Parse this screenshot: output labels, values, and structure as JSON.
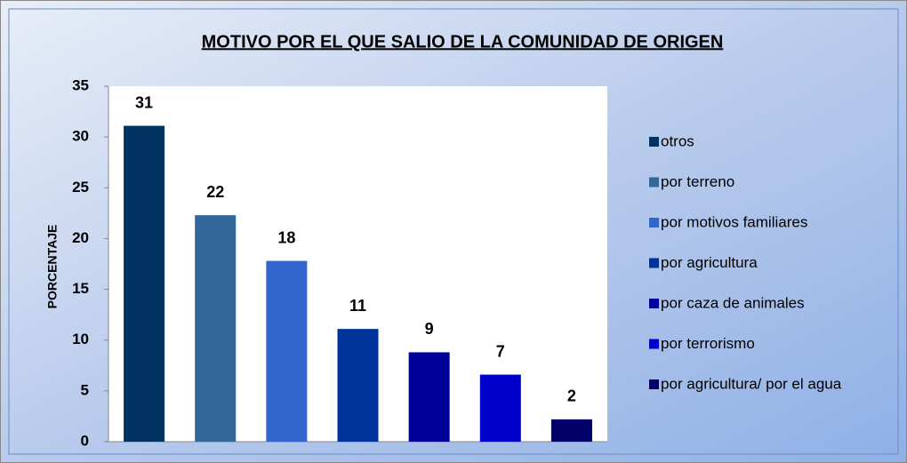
{
  "chart_data": {
    "type": "bar",
    "title": "MOTIVO POR EL QUE SALIO DE LA COMUNIDAD DE ORIGEN",
    "y_label": "PORCENTAJE",
    "categories": [
      "otros",
      "por terreno",
      "por motivos familiares",
      "por agricultura",
      "por caza de animales",
      "por terrorismo",
      "por agricultura/ por el agua"
    ],
    "values": [
      31.1,
      22.3,
      17.8,
      11.1,
      8.8,
      6.6,
      2.2
    ],
    "value_labels": [
      "31",
      "22",
      "18",
      "11",
      "9",
      "7",
      "2"
    ],
    "colors": [
      "#00335f",
      "#336699",
      "#3366cc",
      "#003399",
      "#000099",
      "#0000cc",
      "#000066"
    ],
    "ylim": [
      0,
      35
    ],
    "yticks": [
      0,
      5,
      10,
      15,
      20,
      25,
      30,
      35
    ],
    "legend": "right"
  }
}
